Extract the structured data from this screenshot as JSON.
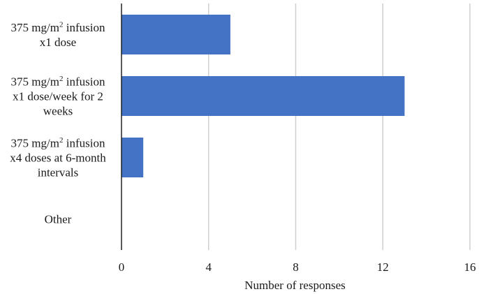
{
  "chart_data": {
    "type": "bar",
    "orientation": "horizontal",
    "title": "",
    "xlabel": "Number of responses",
    "ylabel": "",
    "xlim": [
      0,
      16
    ],
    "xticks": [
      0,
      4,
      8,
      12,
      16
    ],
    "grid": true,
    "bar_color": "#4472c4",
    "categories": [
      {
        "text": "375 mg/m2 infusion x1 dose",
        "lines": [
          [
            "375 mg/m",
            "2",
            " infusion"
          ],
          [
            "x1 dose"
          ]
        ]
      },
      {
        "text": "375 mg/m2 infusion x1 dose/week for 2 weeks",
        "lines": [
          [
            "375 mg/m",
            "2",
            " infusion"
          ],
          [
            "x1 dose/week for 2"
          ],
          [
            "weeks"
          ]
        ]
      },
      {
        "text": "375 mg/m2 infusion x4 doses at 6-month intervals",
        "lines": [
          [
            "375 mg/m",
            "2",
            " infusion"
          ],
          [
            "x4 doses at 6-month"
          ],
          [
            "intervals"
          ]
        ]
      },
      {
        "text": "Other",
        "lines": [
          [
            "Other"
          ]
        ]
      }
    ],
    "values": [
      5,
      13,
      1,
      0
    ]
  }
}
